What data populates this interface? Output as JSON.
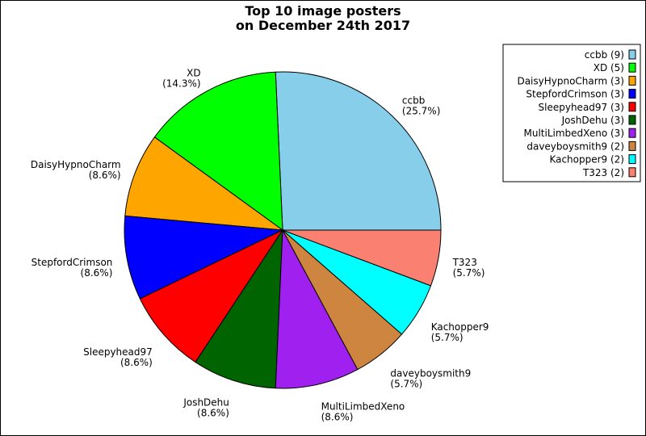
{
  "chart_data": {
    "type": "pie",
    "title": [
      "Top 10 image posters",
      "on December 24th 2017"
    ],
    "legend_position": "top-right",
    "slices": [
      {
        "name": "ccbb",
        "count": 9,
        "percent_label": "(25.7%)",
        "legend_label": "ccbb (9)",
        "color": "#87ceeb"
      },
      {
        "name": "XD",
        "count": 5,
        "percent_label": "(14.3%)",
        "legend_label": "XD (5)",
        "color": "#00ff00"
      },
      {
        "name": "DaisyHypnoCharm",
        "count": 3,
        "percent_label": "(8.6%)",
        "legend_label": "DaisyHypnoCharm (3)",
        "color": "#ffa500"
      },
      {
        "name": "StepfordCrimson",
        "count": 3,
        "percent_label": "(8.6%)",
        "legend_label": "StepfordCrimson (3)",
        "color": "#0000ff"
      },
      {
        "name": "Sleepyhead97",
        "count": 3,
        "percent_label": "(8.6%)",
        "legend_label": "Sleepyhead97 (3)",
        "color": "#ff0000"
      },
      {
        "name": "JoshDehu",
        "count": 3,
        "percent_label": "(8.6%)",
        "legend_label": "JoshDehu (3)",
        "color": "#006400"
      },
      {
        "name": "MultiLimbedXeno",
        "count": 3,
        "percent_label": "(8.6%)",
        "legend_label": "MultiLimbedXeno (3)",
        "color": "#a020f0"
      },
      {
        "name": "daveyboysmith9",
        "count": 2,
        "percent_label": "(5.7%)",
        "legend_label": "daveyboysmith9 (2)",
        "color": "#cd853f"
      },
      {
        "name": "Kachopper9",
        "count": 2,
        "percent_label": "(5.7%)",
        "legend_label": "Kachopper9 (2)",
        "color": "#00ffff"
      },
      {
        "name": "T323",
        "count": 2,
        "percent_label": "(5.7%)",
        "legend_label": "T323 (2)",
        "color": "#fa8072"
      }
    ]
  }
}
